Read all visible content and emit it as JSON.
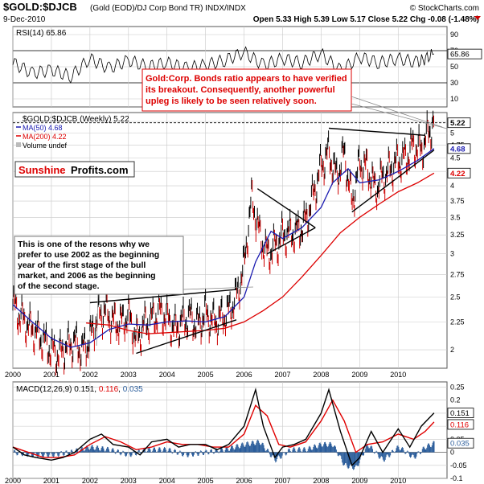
{
  "header": {
    "symbol": "$GOLD:$DJCB",
    "description": "(Gold (EOD)/DJ Corp Bond TR)  INDX/INDX",
    "source": "© StockCharts.com",
    "date": "9-Dec-2010",
    "ohlc": "Open 5.33  High 5.39  Low 5.17  Close 5.22  Chg -0.08 (-1.48%)"
  },
  "annotations": {
    "gold_corp": [
      "Gold:Corp. Bonds ratio appears to have verified",
      "its breakout. Consequently, another powerful",
      "upleg is likely to be seen relatively soon."
    ],
    "reasons": [
      "This is one of the resons why we",
      "prefer to use 2002 as the beginning",
      "year of the first stage of the bull",
      "market, and 2006 as the beginning",
      "of the second stage."
    ],
    "brand_part1": "Sunshine",
    "brand_part2": "Profits.com"
  },
  "colors": {
    "price": "#000000",
    "up_bar": "#000000",
    "down_bar": "#cc0000",
    "ma50": "#1a1ab0",
    "ma200": "#dd0000",
    "annotation_red": "#dd0000",
    "grid": "#c8c8c8",
    "macd_hist": "#2b5d9b",
    "macd_signal": "#e00000",
    "macd_line": "#000000"
  },
  "chart_data": [
    {
      "type": "line",
      "title": "RSI(14) 65.86",
      "ylim": [
        0,
        100
      ],
      "y_ticks": [
        10,
        30,
        50,
        70,
        90
      ],
      "reference_lines": [
        30,
        70
      ],
      "last_value_label": "65.86",
      "x": [
        2000,
        2000.5,
        2001,
        2001.5,
        2002,
        2002.5,
        2003,
        2003.5,
        2004,
        2004.5,
        2005,
        2005.5,
        2006,
        2006.5,
        2007,
        2007.5,
        2008,
        2008.5,
        2009,
        2009.5,
        2010,
        2010.5,
        2010.93
      ],
      "values": [
        55,
        42,
        46,
        38,
        60,
        48,
        58,
        50,
        55,
        48,
        52,
        58,
        68,
        52,
        60,
        55,
        66,
        45,
        62,
        55,
        60,
        55,
        66
      ]
    },
    {
      "type": "line",
      "title": "$GOLD:$DJCB (Weekly) 5.22",
      "legend": [
        "$GOLD:$DJCB (Weekly) 5.22",
        "MA(50) 4.68",
        "MA(200) 4.22",
        "Volume undef"
      ],
      "x_ticks": [
        "2000",
        "2001",
        "2002",
        "2003",
        "2004",
        "2005",
        "2006",
        "2007",
        "2008",
        "2009",
        "2010"
      ],
      "y_ticks": [
        2.0,
        2.25,
        2.5,
        2.75,
        3.0,
        3.25,
        3.5,
        3.75,
        4.0,
        4.25,
        4.5,
        4.75,
        5.0,
        5.25
      ],
      "y_scale": "log",
      "ylim": [
        1.85,
        5.45
      ],
      "value_labels": [
        "5.22",
        "4.68",
        "4.22"
      ],
      "series": [
        {
          "name": "$GOLD:$DJCB (Weekly) 5.22",
          "x": [
            2000.0,
            2000.2,
            2000.4,
            2000.6,
            2000.8,
            2001.0,
            2001.2,
            2001.4,
            2001.6,
            2001.8,
            2002.0,
            2002.2,
            2002.4,
            2002.6,
            2002.8,
            2003.0,
            2003.2,
            2003.4,
            2003.6,
            2003.8,
            2004.0,
            2004.2,
            2004.4,
            2004.6,
            2004.8,
            2005.0,
            2005.2,
            2005.4,
            2005.6,
            2005.8,
            2006.0,
            2006.2,
            2006.4,
            2006.6,
            2006.8,
            2007.0,
            2007.2,
            2007.4,
            2007.6,
            2007.8,
            2008.0,
            2008.2,
            2008.4,
            2008.6,
            2008.8,
            2009.0,
            2009.2,
            2009.4,
            2009.6,
            2009.8,
            2010.0,
            2010.2,
            2010.4,
            2010.6,
            2010.8,
            2010.93
          ],
          "values": [
            2.42,
            2.3,
            2.22,
            2.15,
            2.08,
            2.0,
            1.96,
            2.03,
            2.07,
            1.99,
            2.1,
            2.3,
            2.36,
            2.25,
            2.24,
            2.32,
            2.09,
            2.22,
            2.28,
            2.35,
            2.3,
            2.18,
            2.26,
            2.3,
            2.22,
            2.34,
            2.25,
            2.29,
            2.35,
            2.5,
            2.85,
            3.8,
            3.25,
            3.0,
            3.1,
            3.25,
            3.28,
            3.3,
            3.45,
            3.85,
            4.35,
            4.6,
            4.15,
            4.6,
            3.7,
            4.4,
            4.3,
            3.95,
            4.15,
            4.3,
            4.45,
            4.5,
            4.75,
            4.65,
            5.05,
            5.22
          ]
        },
        {
          "name": "MA(50) 4.68",
          "x": [
            2000.0,
            2000.5,
            2001.0,
            2001.5,
            2002.0,
            2002.5,
            2003.0,
            2003.5,
            2004.0,
            2004.5,
            2005.0,
            2005.5,
            2006.0,
            2006.3,
            2006.7,
            2007.0,
            2007.5,
            2008.0,
            2008.3,
            2008.7,
            2009.0,
            2009.5,
            2010.0,
            2010.5,
            2010.93
          ],
          "values": [
            2.42,
            2.25,
            2.1,
            2.02,
            2.06,
            2.18,
            2.23,
            2.22,
            2.25,
            2.26,
            2.25,
            2.3,
            2.5,
            2.9,
            3.3,
            3.2,
            3.35,
            3.65,
            4.05,
            4.3,
            4.05,
            4.1,
            4.25,
            4.45,
            4.68
          ]
        },
        {
          "name": "MA(200) 4.22",
          "x": [
            2001.9,
            2002.5,
            2003.0,
            2003.5,
            2004.0,
            2004.5,
            2005.0,
            2005.5,
            2006.0,
            2006.5,
            2007.0,
            2007.5,
            2008.0,
            2008.5,
            2009.0,
            2009.5,
            2010.0,
            2010.5,
            2010.93
          ],
          "values": [
            2.24,
            2.22,
            2.17,
            2.14,
            2.15,
            2.16,
            2.17,
            2.19,
            2.25,
            2.36,
            2.5,
            2.72,
            2.98,
            3.28,
            3.5,
            3.7,
            3.9,
            4.05,
            4.22
          ]
        }
      ]
    },
    {
      "type": "line",
      "title": "MACD(12,26,9) 0.151, 0.116, 0.035",
      "legend": [
        "MACD(12,26,9)",
        "0.151",
        "0.116",
        "0.035"
      ],
      "ylim": [
        -0.1,
        0.27
      ],
      "y_ticks": [
        -0.1,
        -0.05,
        0.0,
        0.05,
        0.1,
        0.15,
        0.2,
        0.25
      ],
      "value_labels": [
        "0.151",
        "0.116",
        "0.035"
      ],
      "series": [
        {
          "name": "MACD(12,26,9)",
          "x": [
            2000.0,
            2000.3,
            2000.6,
            2001.0,
            2001.3,
            2001.6,
            2002.0,
            2002.3,
            2002.6,
            2003.0,
            2003.3,
            2003.6,
            2004.0,
            2004.3,
            2004.6,
            2005.0,
            2005.3,
            2005.6,
            2006.0,
            2006.3,
            2006.5,
            2006.8,
            2007.0,
            2007.3,
            2007.6,
            2008.0,
            2008.2,
            2008.5,
            2008.8,
            2009.0,
            2009.3,
            2009.6,
            2010.0,
            2010.3,
            2010.6,
            2010.93
          ],
          "values": [
            0.02,
            -0.01,
            -0.02,
            -0.03,
            -0.02,
            0.0,
            0.05,
            0.07,
            0.03,
            0.02,
            -0.01,
            0.04,
            0.05,
            0.02,
            0.03,
            0.03,
            0.01,
            0.03,
            0.1,
            0.24,
            0.1,
            -0.02,
            0.02,
            0.03,
            0.05,
            0.15,
            0.24,
            0.08,
            -0.05,
            -0.02,
            0.08,
            0.0,
            0.09,
            0.02,
            0.1,
            0.151
          ]
        },
        {
          "name": "0.116",
          "x": [
            2000.0,
            2000.4,
            2000.8,
            2001.2,
            2001.6,
            2002.0,
            2002.4,
            2002.8,
            2003.2,
            2003.6,
            2004.0,
            2004.4,
            2004.8,
            2005.2,
            2005.6,
            2006.0,
            2006.3,
            2006.6,
            2006.9,
            2007.2,
            2007.6,
            2008.0,
            2008.3,
            2008.6,
            2008.9,
            2009.2,
            2009.6,
            2010.0,
            2010.4,
            2010.7,
            2010.93
          ],
          "values": [
            0.02,
            0.0,
            -0.02,
            -0.02,
            -0.01,
            0.03,
            0.06,
            0.04,
            0.01,
            0.02,
            0.04,
            0.03,
            0.03,
            0.02,
            0.02,
            0.07,
            0.18,
            0.14,
            0.03,
            0.02,
            0.04,
            0.12,
            0.2,
            0.12,
            0.0,
            0.03,
            0.04,
            0.07,
            0.05,
            0.08,
            0.116
          ]
        },
        {
          "name": "0.035",
          "type": "histogram",
          "x": [
            2000.0,
            2000.5,
            2001.0,
            2001.5,
            2002.0,
            2002.5,
            2003.0,
            2003.5,
            2004.0,
            2004.5,
            2005.0,
            2005.5,
            2006.0,
            2006.4,
            2006.8,
            2007.2,
            2007.6,
            2008.0,
            2008.3,
            2008.6,
            2008.9,
            2009.2,
            2009.6,
            2010.0,
            2010.4,
            2010.7,
            2010.93
          ],
          "values": [
            0.0,
            -0.01,
            -0.01,
            0.0,
            0.02,
            0.01,
            -0.01,
            0.01,
            0.01,
            -0.01,
            0.0,
            0.01,
            0.03,
            0.04,
            -0.03,
            0.01,
            0.01,
            0.03,
            0.03,
            -0.05,
            -0.06,
            0.03,
            -0.03,
            0.02,
            -0.02,
            0.02,
            0.035
          ]
        }
      ]
    }
  ]
}
